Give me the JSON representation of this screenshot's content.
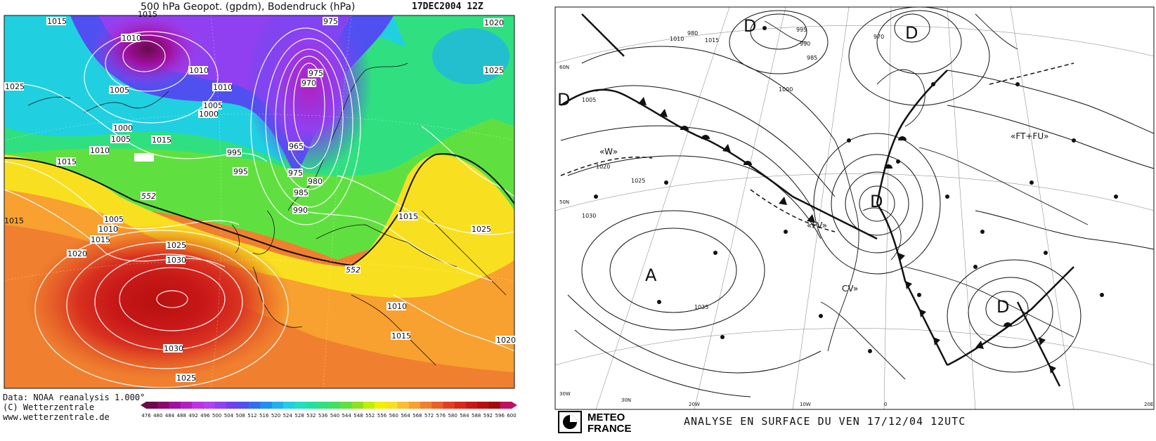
{
  "left": {
    "title": "500 hPa Geopot. (gpdm), Bodendruck (hPa)",
    "date": "17DEC2004 12Z",
    "credit_data": "Data: NOAA reanalysis 1.000°",
    "credit_copy": "(C) Wetterzentrale",
    "credit_url": "www.wetterzentrale.de",
    "colorbar_ticks": [
      "476",
      "480",
      "484",
      "488",
      "492",
      "496",
      "500",
      "504",
      "508",
      "512",
      "516",
      "520",
      "524",
      "528",
      "532",
      "536",
      "540",
      "544",
      "548",
      "552",
      "556",
      "560",
      "564",
      "568",
      "572",
      "576",
      "580",
      "584",
      "588",
      "592",
      "596",
      "600"
    ],
    "colorbar_colors": [
      "#6a0a4a",
      "#8a0a6a",
      "#a010a0",
      "#b020c0",
      "#c030e0",
      "#b040f0",
      "#9040f0",
      "#7040f0",
      "#5050f0",
      "#3070f0",
      "#2090f0",
      "#20b0f0",
      "#20d0e0",
      "#20e0c0",
      "#20e0a0",
      "#30e080",
      "#40e060",
      "#60e040",
      "#90e020",
      "#c0f000",
      "#f0f000",
      "#f8e020",
      "#f8c030",
      "#f8a030",
      "#f08030",
      "#e86028",
      "#e04020",
      "#d82818",
      "#c81818",
      "#b81010",
      "#a00c0c",
      "#c01060"
    ],
    "isobar_labels": [
      "1015",
      "1010",
      "1015",
      "1025",
      "1010",
      "1005",
      "1000",
      "1005",
      "1010",
      "1015",
      "1015",
      "1005",
      "1010",
      "1000",
      "995",
      "995",
      "975",
      "975",
      "970",
      "965",
      "975",
      "980",
      "985",
      "990",
      "1020",
      "1025",
      "552",
      "552",
      "1005",
      "1010",
      "1015",
      "1020",
      "1025",
      "1030",
      "1015",
      "1025",
      "1010",
      "1015",
      "1030",
      "1025",
      "1020",
      "1015"
    ]
  },
  "right": {
    "caption": "ANALYSE EN SURFACE DU  VEN  17/12/04  12UTC",
    "logo_line1": "METEO",
    "logo_line2": "FRANCE",
    "pressure_systems": [
      "D",
      "D",
      "D",
      "D",
      "D",
      "A"
    ],
    "air_masses": [
      "«W»",
      "«FV»",
      "«FT+FU»",
      "CV»"
    ],
    "isobar_labels": [
      "1015",
      "1010",
      "1005",
      "1020",
      "1025",
      "1030",
      "1035",
      "995",
      "990",
      "985",
      "980",
      "1000",
      "970"
    ],
    "lon_labels": [
      "30W",
      "20W",
      "10W",
      "0",
      "20E"
    ],
    "lat_labels": [
      "60N",
      "50N",
      "30N"
    ]
  }
}
